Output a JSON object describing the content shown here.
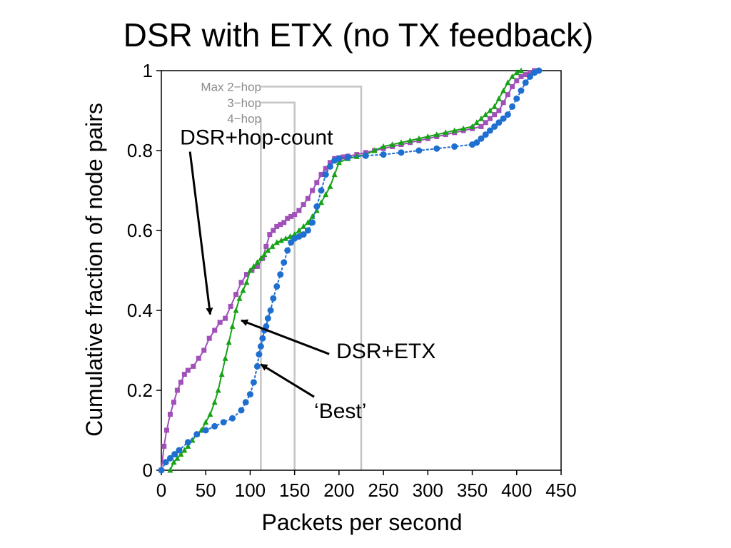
{
  "chart_data": {
    "type": "line",
    "title": "DSR with ETX (no TX feedback)",
    "xlabel": "Packets per second",
    "ylabel": "Cumulative fraction of node pairs",
    "xlim": [
      0,
      450
    ],
    "ylim": [
      0,
      1
    ],
    "xticks": [
      "0",
      "50",
      "100",
      "150",
      "200",
      "250",
      "300",
      "350",
      "400",
      "450"
    ],
    "yticks": [
      "0",
      "0.2",
      "0.4",
      "0.6",
      "0.8",
      "1"
    ],
    "grid": false,
    "colors": {
      "hop_count": "#a050b8",
      "etx": "#17a317",
      "best": "#1f6fd0",
      "hop_lines": "#c4c4c4",
      "axis": "#000000"
    },
    "series": [
      {
        "name": "DSR+hop-count",
        "marker": "square",
        "x": [
          0,
          3,
          6,
          10,
          14,
          18,
          22,
          26,
          30,
          36,
          42,
          48,
          54,
          60,
          66,
          72,
          78,
          84,
          90,
          96,
          102,
          108,
          114,
          118,
          122,
          126,
          130,
          134,
          138,
          142,
          146,
          150,
          155,
          160,
          165,
          170,
          175,
          180,
          185,
          190,
          195,
          200,
          205,
          210,
          220,
          230,
          240,
          250,
          260,
          270,
          280,
          290,
          300,
          310,
          320,
          330,
          340,
          350,
          360,
          365,
          370,
          375,
          380,
          385,
          390,
          395,
          400,
          405,
          410,
          415,
          420
        ],
        "y": [
          0.0,
          0.06,
          0.1,
          0.14,
          0.17,
          0.2,
          0.22,
          0.24,
          0.25,
          0.26,
          0.28,
          0.3,
          0.33,
          0.35,
          0.37,
          0.38,
          0.41,
          0.44,
          0.47,
          0.49,
          0.5,
          0.51,
          0.53,
          0.56,
          0.59,
          0.6,
          0.61,
          0.615,
          0.62,
          0.63,
          0.635,
          0.64,
          0.65,
          0.665,
          0.68,
          0.7,
          0.72,
          0.74,
          0.755,
          0.77,
          0.78,
          0.782,
          0.784,
          0.786,
          0.79,
          0.795,
          0.8,
          0.805,
          0.81,
          0.815,
          0.82,
          0.825,
          0.83,
          0.835,
          0.84,
          0.845,
          0.85,
          0.855,
          0.86,
          0.87,
          0.88,
          0.89,
          0.9,
          0.92,
          0.94,
          0.96,
          0.975,
          0.985,
          0.99,
          0.995,
          1.0
        ]
      },
      {
        "name": "DSR+ETX",
        "marker": "triangle",
        "x": [
          10,
          14,
          18,
          22,
          26,
          30,
          35,
          40,
          45,
          50,
          55,
          60,
          64,
          68,
          72,
          76,
          80,
          84,
          88,
          92,
          96,
          100,
          104,
          108,
          112,
          116,
          120,
          125,
          130,
          135,
          140,
          145,
          150,
          155,
          160,
          165,
          170,
          175,
          180,
          185,
          190,
          195,
          200,
          210,
          220,
          230,
          240,
          250,
          260,
          270,
          280,
          290,
          300,
          310,
          320,
          330,
          340,
          350,
          355,
          360,
          365,
          370,
          375,
          380,
          385,
          390,
          395,
          400,
          405
        ],
        "y": [
          0.0,
          0.02,
          0.03,
          0.04,
          0.05,
          0.06,
          0.075,
          0.09,
          0.1,
          0.12,
          0.14,
          0.17,
          0.2,
          0.24,
          0.28,
          0.32,
          0.36,
          0.4,
          0.43,
          0.45,
          0.47,
          0.5,
          0.51,
          0.52,
          0.53,
          0.54,
          0.55,
          0.56,
          0.57,
          0.575,
          0.58,
          0.585,
          0.59,
          0.6,
          0.61,
          0.62,
          0.635,
          0.65,
          0.67,
          0.69,
          0.71,
          0.74,
          0.77,
          0.78,
          0.785,
          0.79,
          0.8,
          0.81,
          0.815,
          0.82,
          0.825,
          0.83,
          0.835,
          0.84,
          0.845,
          0.85,
          0.855,
          0.86,
          0.87,
          0.88,
          0.89,
          0.9,
          0.91,
          0.93,
          0.95,
          0.97,
          0.985,
          0.995,
          1.0
        ]
      },
      {
        "name": "'Best'",
        "marker": "circle",
        "x": [
          0,
          5,
          10,
          15,
          20,
          30,
          40,
          50,
          60,
          70,
          80,
          90,
          95,
          100,
          104,
          108,
          110,
          112,
          114,
          116,
          118,
          120,
          123,
          126,
          130,
          134,
          138,
          142,
          146,
          150,
          155,
          160,
          165,
          170,
          175,
          180,
          185,
          190,
          195,
          200,
          210,
          230,
          250,
          270,
          290,
          310,
          330,
          350,
          355,
          360,
          365,
          370,
          375,
          380,
          385,
          390,
          395,
          400,
          405,
          410,
          415,
          420,
          425
        ],
        "y": [
          0.0,
          0.02,
          0.03,
          0.04,
          0.05,
          0.07,
          0.09,
          0.1,
          0.11,
          0.12,
          0.13,
          0.15,
          0.17,
          0.19,
          0.22,
          0.26,
          0.29,
          0.31,
          0.33,
          0.35,
          0.36,
          0.38,
          0.4,
          0.43,
          0.46,
          0.49,
          0.52,
          0.55,
          0.57,
          0.58,
          0.585,
          0.59,
          0.6,
          0.62,
          0.66,
          0.7,
          0.74,
          0.76,
          0.775,
          0.78,
          0.783,
          0.787,
          0.79,
          0.795,
          0.8,
          0.805,
          0.81,
          0.815,
          0.82,
          0.83,
          0.84,
          0.85,
          0.86,
          0.87,
          0.88,
          0.89,
          0.91,
          0.93,
          0.95,
          0.97,
          0.985,
          0.995,
          1.0
        ]
      }
    ],
    "hop_lines": [
      {
        "label": "Max 2−hop",
        "x": 225,
        "y": 0.96
      },
      {
        "label": "3−hop",
        "x": 150,
        "y": 0.92
      },
      {
        "label": "4−hop",
        "x": 112,
        "y": 0.88
      }
    ],
    "annotations": [
      {
        "text": "DSR+hop-count",
        "text_x": 21,
        "text_y": 0.815,
        "target_x": 55,
        "target_y": 0.39
      },
      {
        "text": "DSR+ETX",
        "text_x": 197,
        "text_y": 0.28,
        "target_x": 90,
        "target_y": 0.375
      },
      {
        "text": "‘Best’",
        "text_x": 172,
        "text_y": 0.13,
        "target_x": 112,
        "target_y": 0.265
      }
    ]
  }
}
